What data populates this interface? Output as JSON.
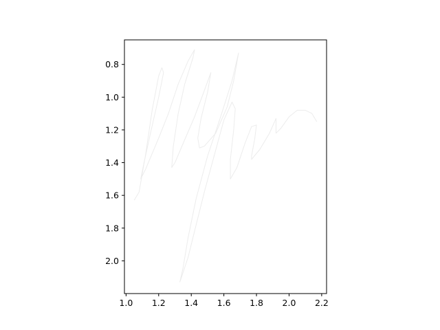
{
  "chart_data": {
    "type": "line",
    "title": "",
    "xlabel": "",
    "ylabel": "",
    "xlim": [
      0.99,
      2.23
    ],
    "ylim": [
      2.2,
      0.65
    ],
    "y_inverted": true,
    "grid": false,
    "legend": "none",
    "x_ticks": [
      1.0,
      1.2,
      1.4,
      1.6,
      1.8,
      2.0,
      2.2
    ],
    "x_tick_labels": [
      "1.0",
      "1.2",
      "1.4",
      "1.6",
      "1.8",
      "2.0",
      "2.2"
    ],
    "y_ticks": [
      0.8,
      1.0,
      1.2,
      1.4,
      1.6,
      1.8,
      2.0
    ],
    "y_tick_labels": [
      "0.8",
      "1.0",
      "1.2",
      "1.4",
      "1.6",
      "1.8",
      "2.0"
    ],
    "series": [
      {
        "color": "#ececec",
        "points": [
          [
            1.05,
            1.63
          ],
          [
            1.08,
            1.58
          ],
          [
            1.12,
            1.35
          ],
          [
            1.16,
            1.08
          ],
          [
            1.2,
            0.87
          ],
          [
            1.22,
            0.82
          ],
          [
            1.23,
            0.85
          ],
          [
            1.2,
            1.0
          ],
          [
            1.15,
            1.22
          ],
          [
            1.11,
            1.4
          ],
          [
            1.09,
            1.5
          ],
          [
            1.12,
            1.44
          ],
          [
            1.2,
            1.25
          ],
          [
            1.26,
            1.1
          ],
          [
            1.32,
            0.92
          ],
          [
            1.38,
            0.78
          ],
          [
            1.42,
            0.71
          ],
          [
            1.41,
            0.76
          ],
          [
            1.36,
            0.92
          ],
          [
            1.32,
            1.1
          ],
          [
            1.29,
            1.3
          ],
          [
            1.28,
            1.43
          ],
          [
            1.3,
            1.4
          ],
          [
            1.36,
            1.26
          ],
          [
            1.42,
            1.12
          ],
          [
            1.48,
            0.96
          ],
          [
            1.52,
            0.85
          ],
          [
            1.5,
            0.97
          ],
          [
            1.46,
            1.13
          ],
          [
            1.44,
            1.25
          ],
          [
            1.45,
            1.31
          ],
          [
            1.48,
            1.3
          ],
          [
            1.55,
            1.22
          ],
          [
            1.62,
            1.06
          ],
          [
            1.66,
            0.9
          ],
          [
            1.69,
            0.73
          ],
          [
            1.65,
            0.9
          ],
          [
            1.58,
            1.12
          ],
          [
            1.5,
            1.36
          ],
          [
            1.43,
            1.62
          ],
          [
            1.38,
            1.86
          ],
          [
            1.35,
            2.04
          ],
          [
            1.33,
            2.13
          ],
          [
            1.34,
            2.1
          ],
          [
            1.38,
            1.98
          ],
          [
            1.43,
            1.78
          ],
          [
            1.48,
            1.58
          ],
          [
            1.54,
            1.36
          ],
          [
            1.6,
            1.14
          ],
          [
            1.65,
            1.03
          ],
          [
            1.67,
            1.07
          ],
          [
            1.66,
            1.2
          ],
          [
            1.64,
            1.38
          ],
          [
            1.64,
            1.5
          ],
          [
            1.68,
            1.43
          ],
          [
            1.73,
            1.28
          ],
          [
            1.77,
            1.18
          ],
          [
            1.8,
            1.17
          ],
          [
            1.79,
            1.25
          ],
          [
            1.77,
            1.36
          ],
          [
            1.77,
            1.38
          ],
          [
            1.82,
            1.32
          ],
          [
            1.88,
            1.22
          ],
          [
            1.92,
            1.13
          ],
          [
            1.92,
            1.22
          ],
          [
            1.95,
            1.19
          ],
          [
            2.0,
            1.12
          ],
          [
            2.05,
            1.08
          ],
          [
            2.1,
            1.08
          ],
          [
            2.14,
            1.1
          ],
          [
            2.17,
            1.15
          ]
        ]
      }
    ]
  }
}
